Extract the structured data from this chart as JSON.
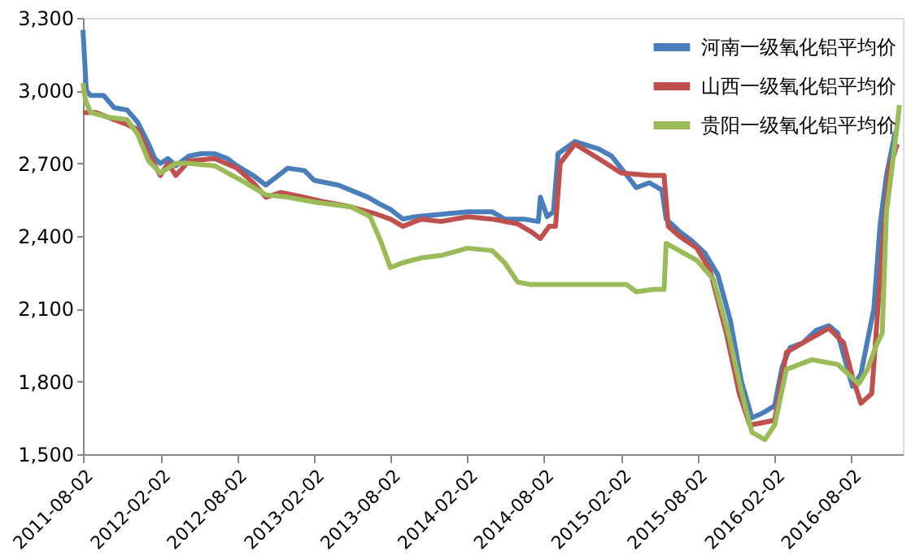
{
  "chart_data": {
    "type": "line",
    "xlim": [
      "2011-08-02",
      "2016-12-03"
    ],
    "xticks": [
      "2011-08-02",
      "2012-02-02",
      "2012-08-02",
      "2013-02-02",
      "2013-08-02",
      "2014-02-02",
      "2014-08-02",
      "2015-02-02",
      "2015-08-02",
      "2016-02-02",
      "2016-08-02"
    ],
    "ylim": [
      1500,
      3300
    ],
    "yticks": [
      {
        "value": 1500,
        "label": "1,500"
      },
      {
        "value": 1800,
        "label": "1,800"
      },
      {
        "value": 2100,
        "label": "2,100"
      },
      {
        "value": 2400,
        "label": "2,400"
      },
      {
        "value": 2700,
        "label": "2,700"
      },
      {
        "value": 3000,
        "label": "3,000"
      },
      {
        "value": 3300,
        "label": "3,300"
      }
    ],
    "grid": false,
    "legend": "top right",
    "marker": "none",
    "line_style": "solid",
    "series": [
      {
        "name": "河南一级氧化铝平均价",
        "color": "#4a7ebb",
        "x": [
          "2011-08-02",
          "2011-08-10",
          "2011-08-20",
          "2011-09-20",
          "2011-10-15",
          "2011-11-15",
          "2011-12-10",
          "2012-01-05",
          "2012-01-20",
          "2012-02-02",
          "2012-02-20",
          "2012-03-10",
          "2012-04-10",
          "2012-05-10",
          "2012-06-10",
          "2012-07-10",
          "2012-08-02",
          "2012-09-10",
          "2012-10-10",
          "2012-11-01",
          "2012-12-01",
          "2013-01-10",
          "2013-02-02",
          "2013-04-01",
          "2013-06-10",
          "2013-07-10",
          "2013-08-02",
          "2013-09-01",
          "2013-10-01",
          "2013-12-01",
          "2014-02-02",
          "2014-04-01",
          "2014-05-01",
          "2014-06-15",
          "2014-07-20",
          "2014-07-25",
          "2014-08-10",
          "2014-08-25",
          "2014-09-05",
          "2014-10-15",
          "2014-12-10",
          "2015-01-10",
          "2015-02-02",
          "2015-03-10",
          "2015-04-10",
          "2015-05-10",
          "2015-05-20",
          "2015-06-20",
          "2015-07-20",
          "2015-08-20",
          "2015-09-20",
          "2015-10-20",
          "2015-11-15",
          "2015-12-10",
          "2016-01-05",
          "2016-02-02",
          "2016-02-20",
          "2016-03-10",
          "2016-04-10",
          "2016-05-10",
          "2016-06-10",
          "2016-07-01",
          "2016-07-20",
          "2016-08-05",
          "2016-08-25",
          "2016-09-25",
          "2016-10-10",
          "2016-10-25",
          "2016-11-15"
        ],
        "values": [
          3250,
          3000,
          2980,
          2980,
          2930,
          2920,
          2870,
          2780,
          2720,
          2700,
          2720,
          2690,
          2730,
          2740,
          2740,
          2720,
          2690,
          2650,
          2610,
          2640,
          2680,
          2670,
          2630,
          2610,
          2560,
          2530,
          2510,
          2470,
          2480,
          2490,
          2500,
          2500,
          2470,
          2470,
          2460,
          2560,
          2480,
          2500,
          2740,
          2790,
          2760,
          2730,
          2680,
          2600,
          2620,
          2590,
          2470,
          2420,
          2380,
          2330,
          2240,
          2050,
          1800,
          1650,
          1670,
          1700,
          1860,
          1940,
          1960,
          2010,
          2030,
          2000,
          1880,
          1780,
          1830,
          2100,
          2450,
          2650,
          2830
        ]
      },
      {
        "name": "山西一级氧化铝平均价",
        "color": "#c0504d",
        "x": [
          "2011-08-02",
          "2011-09-01",
          "2011-10-15",
          "2011-11-15",
          "2011-12-10",
          "2012-01-05",
          "2012-02-02",
          "2012-02-20",
          "2012-03-10",
          "2012-04-10",
          "2012-06-10",
          "2012-08-02",
          "2012-09-10",
          "2012-10-10",
          "2012-11-15",
          "2013-01-10",
          "2013-03-01",
          "2013-05-01",
          "2013-07-01",
          "2013-08-02",
          "2013-09-01",
          "2013-10-15",
          "2013-12-01",
          "2014-02-02",
          "2014-04-01",
          "2014-06-01",
          "2014-07-01",
          "2014-07-25",
          "2014-08-15",
          "2014-08-30",
          "2014-09-10",
          "2014-10-15",
          "2014-12-10",
          "2015-02-02",
          "2015-04-10",
          "2015-05-15",
          "2015-05-25",
          "2015-06-20",
          "2015-08-01",
          "2015-09-01",
          "2015-10-10",
          "2015-11-10",
          "2015-12-05",
          "2016-01-05",
          "2016-02-02",
          "2016-03-01",
          "2016-04-10",
          "2016-06-10",
          "2016-07-15",
          "2016-08-05",
          "2016-08-25",
          "2016-09-20",
          "2016-10-15",
          "2016-11-01",
          "2016-11-20"
        ],
        "values": [
          2910,
          2910,
          2880,
          2860,
          2840,
          2740,
          2650,
          2700,
          2650,
          2710,
          2720,
          2680,
          2620,
          2560,
          2580,
          2560,
          2540,
          2520,
          2490,
          2470,
          2440,
          2470,
          2460,
          2480,
          2470,
          2450,
          2420,
          2390,
          2440,
          2440,
          2700,
          2780,
          2720,
          2660,
          2650,
          2650,
          2440,
          2400,
          2350,
          2260,
          2000,
          1750,
          1620,
          1630,
          1640,
          1920,
          1960,
          2020,
          1960,
          1820,
          1710,
          1750,
          2350,
          2680,
          2780
        ]
      },
      {
        "name": "贵阳一级氧化铝平均价",
        "color": "#9bbb59",
        "x": [
          "2011-08-02",
          "2011-08-08",
          "2011-08-20",
          "2011-10-01",
          "2011-11-15",
          "2011-12-10",
          "2012-01-05",
          "2012-02-02",
          "2012-03-10",
          "2012-04-10",
          "2012-06-10",
          "2012-08-02",
          "2012-10-10",
          "2012-12-01",
          "2013-02-02",
          "2013-05-01",
          "2013-06-15",
          "2013-07-10",
          "2013-08-02",
          "2013-09-01",
          "2013-10-15",
          "2013-12-01",
          "2014-02-02",
          "2014-04-01",
          "2014-05-01",
          "2014-06-01",
          "2014-07-01",
          "2014-10-01",
          "2015-01-01",
          "2015-02-15",
          "2015-03-10",
          "2015-04-20",
          "2015-05-15",
          "2015-05-20",
          "2015-06-20",
          "2015-08-01",
          "2015-09-10",
          "2015-10-15",
          "2015-11-15",
          "2015-12-10",
          "2016-01-10",
          "2016-02-02",
          "2016-03-01",
          "2016-05-01",
          "2016-07-01",
          "2016-08-02",
          "2016-08-20",
          "2016-09-10",
          "2016-10-01",
          "2016-10-15",
          "2016-10-25",
          "2016-11-05",
          "2016-11-25"
        ],
        "values": [
          3030,
          2960,
          2910,
          2890,
          2880,
          2820,
          2710,
          2660,
          2700,
          2700,
          2690,
          2640,
          2570,
          2560,
          2540,
          2520,
          2480,
          2380,
          2270,
          2290,
          2310,
          2320,
          2350,
          2340,
          2290,
          2210,
          2200,
          2200,
          2200,
          2200,
          2170,
          2180,
          2180,
          2370,
          2340,
          2300,
          2220,
          2000,
          1760,
          1590,
          1560,
          1620,
          1850,
          1890,
          1870,
          1820,
          1790,
          1850,
          1950,
          2000,
          2500,
          2650,
          2940
        ]
      }
    ]
  }
}
